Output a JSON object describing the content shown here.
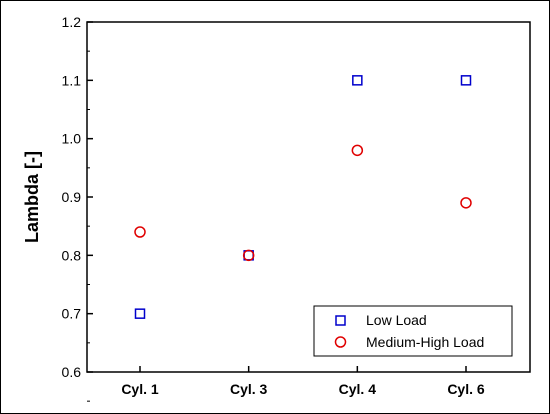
{
  "chart_data": {
    "type": "scatter",
    "categories": [
      "Cyl. 1",
      "Cyl. 3",
      "Cyl. 4",
      "Cyl. 6"
    ],
    "ylabel": "Lambda [-]",
    "xlabel": "",
    "ylim": [
      0.6,
      1.2
    ],
    "yticks": [
      "0.6",
      "0.7",
      "0.8",
      "0.9",
      "1.0",
      "1.1",
      "1.2"
    ],
    "grid": false,
    "legend_position": "bottom-right",
    "series": [
      {
        "name": "Low Load",
        "marker": "square",
        "color": "#0000cc",
        "values": [
          0.7,
          0.8,
          1.1,
          1.1
        ]
      },
      {
        "name": "Medium-High Load",
        "marker": "circle",
        "color": "#e00000",
        "values": [
          0.84,
          0.8,
          0.98,
          0.89
        ]
      }
    ]
  }
}
